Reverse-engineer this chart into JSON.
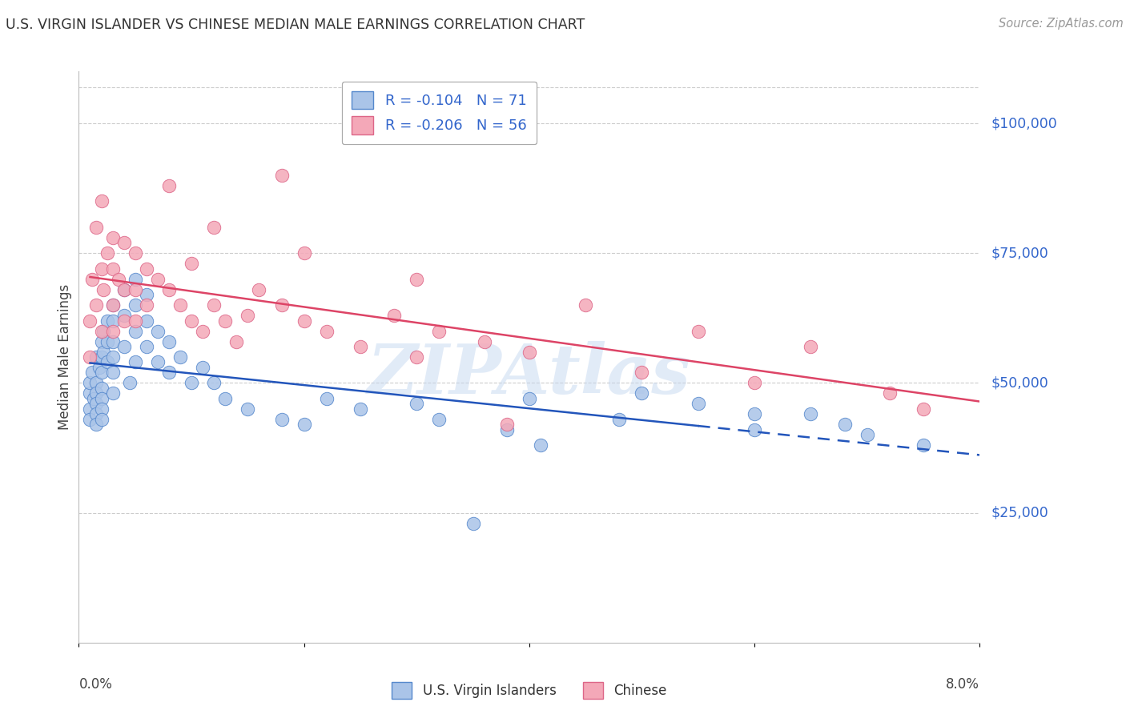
{
  "title": "U.S. VIRGIN ISLANDER VS CHINESE MEDIAN MALE EARNINGS CORRELATION CHART",
  "source": "Source: ZipAtlas.com",
  "ylabel": "Median Male Earnings",
  "watermark": "ZIPAtlas",
  "series1_label": "U.S. Virgin Islanders",
  "series2_label": "Chinese",
  "series1_color": "#aac4e8",
  "series2_color": "#f4a8b8",
  "series1_edge": "#5588cc",
  "series2_edge": "#dd6688",
  "trend1_color": "#2255bb",
  "trend2_color": "#dd4466",
  "background": "#ffffff",
  "grid_color": "#cccccc",
  "label_color": "#3366cc",
  "R1": -0.104,
  "N1": 71,
  "R2": -0.206,
  "N2": 56,
  "xmin": 0.0,
  "xmax": 0.08,
  "ymin": 0,
  "ymax": 110000,
  "yticks": [
    25000,
    50000,
    75000,
    100000
  ],
  "ytick_labels": [
    "$25,000",
    "$50,000",
    "$75,000",
    "$100,000"
  ],
  "vi_x": [
    0.001,
    0.001,
    0.001,
    0.001,
    0.0012,
    0.0013,
    0.0015,
    0.0015,
    0.0015,
    0.0015,
    0.0015,
    0.0015,
    0.0018,
    0.002,
    0.002,
    0.002,
    0.002,
    0.002,
    0.002,
    0.002,
    0.0022,
    0.0022,
    0.0025,
    0.0025,
    0.0025,
    0.003,
    0.003,
    0.003,
    0.003,
    0.003,
    0.003,
    0.004,
    0.004,
    0.004,
    0.0045,
    0.005,
    0.005,
    0.005,
    0.005,
    0.006,
    0.006,
    0.006,
    0.007,
    0.007,
    0.008,
    0.008,
    0.009,
    0.01,
    0.011,
    0.012,
    0.013,
    0.015,
    0.018,
    0.022,
    0.03,
    0.032,
    0.038,
    0.041,
    0.05,
    0.055,
    0.06,
    0.06,
    0.065,
    0.068,
    0.07,
    0.075,
    0.04,
    0.02,
    0.025,
    0.048,
    0.035
  ],
  "vi_y": [
    48000,
    45000,
    43000,
    50000,
    52000,
    47000,
    55000,
    50000,
    48000,
    46000,
    44000,
    42000,
    53000,
    58000,
    55000,
    52000,
    49000,
    47000,
    45000,
    43000,
    60000,
    56000,
    62000,
    58000,
    54000,
    65000,
    62000,
    58000,
    55000,
    52000,
    48000,
    68000,
    63000,
    57000,
    50000,
    70000,
    65000,
    60000,
    54000,
    67000,
    62000,
    57000,
    60000,
    54000,
    58000,
    52000,
    55000,
    50000,
    53000,
    50000,
    47000,
    45000,
    43000,
    47000,
    46000,
    43000,
    41000,
    38000,
    48000,
    46000,
    44000,
    41000,
    44000,
    42000,
    40000,
    38000,
    47000,
    42000,
    45000,
    43000,
    23000
  ],
  "ch_x": [
    0.001,
    0.001,
    0.0012,
    0.0015,
    0.0015,
    0.002,
    0.002,
    0.002,
    0.0022,
    0.0025,
    0.003,
    0.003,
    0.003,
    0.003,
    0.0035,
    0.004,
    0.004,
    0.004,
    0.005,
    0.005,
    0.005,
    0.006,
    0.006,
    0.007,
    0.008,
    0.009,
    0.01,
    0.011,
    0.012,
    0.013,
    0.014,
    0.015,
    0.016,
    0.018,
    0.02,
    0.022,
    0.025,
    0.028,
    0.032,
    0.036,
    0.04,
    0.05,
    0.06,
    0.072,
    0.018,
    0.008,
    0.012,
    0.02,
    0.03,
    0.045,
    0.055,
    0.065,
    0.075,
    0.03,
    0.038,
    0.01
  ],
  "ch_y": [
    62000,
    55000,
    70000,
    80000,
    65000,
    85000,
    72000,
    60000,
    68000,
    75000,
    78000,
    72000,
    65000,
    60000,
    70000,
    77000,
    68000,
    62000,
    75000,
    68000,
    62000,
    72000,
    65000,
    70000,
    68000,
    65000,
    62000,
    60000,
    65000,
    62000,
    58000,
    63000,
    68000,
    65000,
    62000,
    60000,
    57000,
    63000,
    60000,
    58000,
    56000,
    52000,
    50000,
    48000,
    90000,
    88000,
    80000,
    75000,
    70000,
    65000,
    60000,
    57000,
    45000,
    55000,
    42000,
    73000
  ],
  "trend1_solid_end": 0.055,
  "trend2_solid_end": 0.08
}
